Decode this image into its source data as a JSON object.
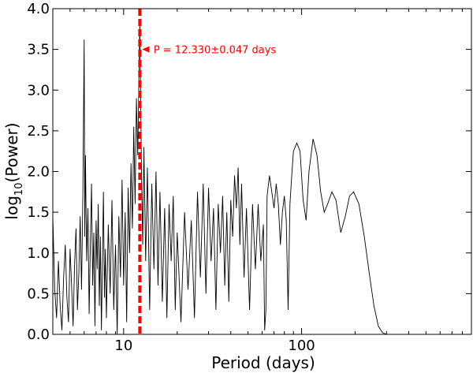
{
  "chart_data": {
    "type": "line",
    "title": "",
    "xlabel": "Period (days)",
    "ylabel_main": "log",
    "ylabel_sub": "10",
    "ylabel_tail": "(Power)",
    "x_scale": "log",
    "xlim": [
      4,
      900
    ],
    "ylim": [
      0,
      4
    ],
    "x_ticks": [
      {
        "value": 10,
        "label": "10"
      },
      {
        "value": 100,
        "label": "100"
      }
    ],
    "y_ticks": [
      {
        "value": 0.0,
        "label": "0.0"
      },
      {
        "value": 0.5,
        "label": "0.5"
      },
      {
        "value": 1.0,
        "label": "1.0"
      },
      {
        "value": 1.5,
        "label": "1.5"
      },
      {
        "value": 2.0,
        "label": "2.0"
      },
      {
        "value": 2.5,
        "label": "2.5"
      },
      {
        "value": 3.0,
        "label": "3.0"
      },
      {
        "value": 3.5,
        "label": "3.5"
      },
      {
        "value": 4.0,
        "label": "4.0"
      }
    ],
    "grid": false,
    "series_color": "#000000",
    "marker": {
      "period": 12.33,
      "color": "#ff0000",
      "style": "dashed"
    },
    "annotation": {
      "text": "P = 12.330±0.047 days",
      "color": "#ff0000",
      "arrow_to": [
        12.33,
        3.5
      ],
      "text_at": [
        14.0,
        3.5
      ]
    },
    "series": [
      {
        "points": [
          [
            4.0,
            1.45
          ],
          [
            4.1,
            0.55
          ],
          [
            4.2,
            0.2
          ],
          [
            4.3,
            0.9
          ],
          [
            4.4,
            0.35
          ],
          [
            4.5,
            0.05
          ],
          [
            4.6,
            0.7
          ],
          [
            4.7,
            1.1
          ],
          [
            4.8,
            0.45
          ],
          [
            4.9,
            0.15
          ],
          [
            5.0,
            1.05
          ],
          [
            5.1,
            0.6
          ],
          [
            5.2,
            0.1
          ],
          [
            5.3,
            0.85
          ],
          [
            5.4,
            1.3
          ],
          [
            5.5,
            0.3
          ],
          [
            5.6,
            0.75
          ],
          [
            5.7,
            1.45
          ],
          [
            5.8,
            0.55
          ],
          [
            5.9,
            1.7
          ],
          [
            6.0,
            3.62
          ],
          [
            6.05,
            1.2
          ],
          [
            6.1,
            2.2
          ],
          [
            6.2,
            0.9
          ],
          [
            6.3,
            1.55
          ],
          [
            6.4,
            0.25
          ],
          [
            6.5,
            1.1
          ],
          [
            6.6,
            1.85
          ],
          [
            6.7,
            0.6
          ],
          [
            6.8,
            1.25
          ],
          [
            6.9,
            0.1
          ],
          [
            7.0,
            1.4
          ],
          [
            7.1,
            0.8
          ],
          [
            7.2,
            1.6
          ],
          [
            7.3,
            0.35
          ],
          [
            7.4,
            1.2
          ],
          [
            7.5,
            0.05
          ],
          [
            7.6,
            0.9
          ],
          [
            7.7,
            1.75
          ],
          [
            7.8,
            0.45
          ],
          [
            7.9,
            1.05
          ],
          [
            8.0,
            0.2
          ],
          [
            8.2,
            1.35
          ],
          [
            8.4,
            0.5
          ],
          [
            8.6,
            1.65
          ],
          [
            8.8,
            0.3
          ],
          [
            9.0,
            1.1
          ],
          [
            9.2,
            0.0
          ],
          [
            9.4,
            1.45
          ],
          [
            9.6,
            0.7
          ],
          [
            9.8,
            1.9
          ],
          [
            10.0,
            0.6
          ],
          [
            10.2,
            1.5
          ],
          [
            10.4,
            0.15
          ],
          [
            10.6,
            1.8
          ],
          [
            10.8,
            1.0
          ],
          [
            11.0,
            2.1
          ],
          [
            11.2,
            1.3
          ],
          [
            11.4,
            2.55
          ],
          [
            11.6,
            1.6
          ],
          [
            11.8,
            2.9
          ],
          [
            12.0,
            2.2
          ],
          [
            12.33,
            3.85
          ],
          [
            12.6,
            2.0
          ],
          [
            12.8,
            1.1
          ],
          [
            13.0,
            2.3
          ],
          [
            13.3,
            0.9
          ],
          [
            13.6,
            2.05
          ],
          [
            14.0,
            0.3
          ],
          [
            14.4,
            1.85
          ],
          [
            14.8,
            0.8
          ],
          [
            15.2,
            2.0
          ],
          [
            15.6,
            0.6
          ],
          [
            16.0,
            1.75
          ],
          [
            16.5,
            0.4
          ],
          [
            17.0,
            1.55
          ],
          [
            17.5,
            0.2
          ],
          [
            18.0,
            1.6
          ],
          [
            18.5,
            0.9
          ],
          [
            19.0,
            1.7
          ],
          [
            19.5,
            0.3
          ],
          [
            20.0,
            1.25
          ],
          [
            21.0,
            0.15
          ],
          [
            22.0,
            1.5
          ],
          [
            23.0,
            0.55
          ],
          [
            24.0,
            1.4
          ],
          [
            25.0,
            0.2
          ],
          [
            26.0,
            1.75
          ],
          [
            27.0,
            0.7
          ],
          [
            28.0,
            1.85
          ],
          [
            29.0,
            0.5
          ],
          [
            30.0,
            1.8
          ],
          [
            31.0,
            0.9
          ],
          [
            32.0,
            1.55
          ],
          [
            33.0,
            0.3
          ],
          [
            34.0,
            1.6
          ],
          [
            35.0,
            1.0
          ],
          [
            36.0,
            1.7
          ],
          [
            37.0,
            0.6
          ],
          [
            38.0,
            1.5
          ],
          [
            39.0,
            0.4
          ],
          [
            40.0,
            1.65
          ],
          [
            41.0,
            1.2
          ],
          [
            42.0,
            1.95
          ],
          [
            43.0,
            1.55
          ],
          [
            44.0,
            2.05
          ],
          [
            45.0,
            1.1
          ],
          [
            46.0,
            1.85
          ],
          [
            47.5,
            0.7
          ],
          [
            49.0,
            1.55
          ],
          [
            51.0,
            0.3
          ],
          [
            53.0,
            1.6
          ],
          [
            55.0,
            0.8
          ],
          [
            57.0,
            1.6
          ],
          [
            59.0,
            0.9
          ],
          [
            61.0,
            1.35
          ],
          [
            62.0,
            0.05
          ],
          [
            63.0,
            0.3
          ],
          [
            64.0,
            1.7
          ],
          [
            66.0,
            1.95
          ],
          [
            68.0,
            1.75
          ],
          [
            70.0,
            1.55
          ],
          [
            72.0,
            1.85
          ],
          [
            74.0,
            1.6
          ],
          [
            76.0,
            1.1
          ],
          [
            78.0,
            1.5
          ],
          [
            80.0,
            1.7
          ],
          [
            82.0,
            1.4
          ],
          [
            84.0,
            0.3
          ],
          [
            86.0,
            1.6
          ],
          [
            88.0,
            1.95
          ],
          [
            90.0,
            2.25
          ],
          [
            94.0,
            2.35
          ],
          [
            98.0,
            2.25
          ],
          [
            102.0,
            1.65
          ],
          [
            106.0,
            1.4
          ],
          [
            110.0,
            2.0
          ],
          [
            116.0,
            2.4
          ],
          [
            122.0,
            2.2
          ],
          [
            128.0,
            1.75
          ],
          [
            134.0,
            1.5
          ],
          [
            140.0,
            1.6
          ],
          [
            148.0,
            1.75
          ],
          [
            156.0,
            1.65
          ],
          [
            166.0,
            1.25
          ],
          [
            176.0,
            1.45
          ],
          [
            186.0,
            1.7
          ],
          [
            196.0,
            1.75
          ],
          [
            210.0,
            1.6
          ],
          [
            225.0,
            1.2
          ],
          [
            240.0,
            0.75
          ],
          [
            255.0,
            0.35
          ],
          [
            270.0,
            0.1
          ],
          [
            285.0,
            0.02
          ],
          [
            300.0,
            0.0
          ]
        ]
      }
    ]
  }
}
